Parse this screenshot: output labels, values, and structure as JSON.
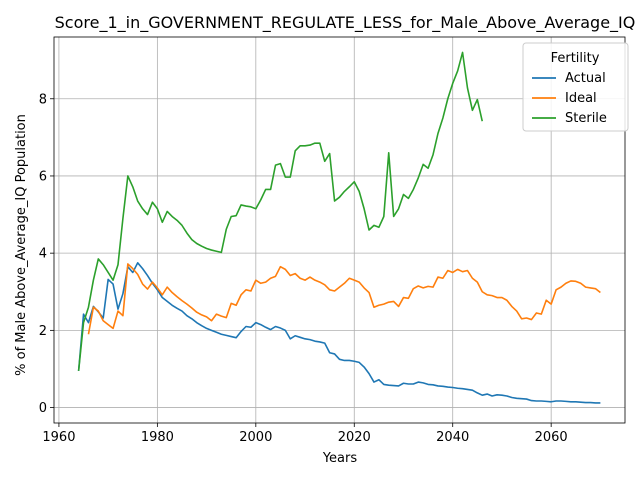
{
  "chart_data": {
    "type": "line",
    "title": "Score_1_in_GOVERNMENT_REGULATE_LESS_for_Male_Above_Average_IQ",
    "xlabel": "Years",
    "ylabel": "% of Male Above_Average_IQ Population",
    "xlim": [
      1959,
      2075
    ],
    "ylim": [
      -0.4,
      9.6
    ],
    "xticks": [
      1960,
      1980,
      2000,
      2020,
      2040,
      2060
    ],
    "yticks": [
      0,
      2,
      4,
      6,
      8
    ],
    "grid": true,
    "legend": {
      "title": "Fertility",
      "placement": "top-right"
    },
    "series": [
      {
        "name": "Actual",
        "color": "#1f77b4",
        "points": [
          [
            1964,
            0.95
          ],
          [
            1965,
            2.42
          ],
          [
            1966,
            2.2
          ],
          [
            1967,
            2.62
          ],
          [
            1968,
            2.48
          ],
          [
            1969,
            2.32
          ],
          [
            1970,
            3.32
          ],
          [
            1971,
            3.2
          ],
          [
            1972,
            2.55
          ],
          [
            1973,
            2.95
          ],
          [
            1974,
            3.65
          ],
          [
            1975,
            3.5
          ],
          [
            1976,
            3.75
          ],
          [
            1977,
            3.6
          ],
          [
            1978,
            3.42
          ],
          [
            1979,
            3.22
          ],
          [
            1980,
            3.05
          ],
          [
            1981,
            2.85
          ],
          [
            1982,
            2.75
          ],
          [
            1983,
            2.65
          ],
          [
            1984,
            2.57
          ],
          [
            1985,
            2.5
          ],
          [
            1986,
            2.38
          ],
          [
            1987,
            2.3
          ],
          [
            1988,
            2.2
          ],
          [
            1989,
            2.12
          ],
          [
            1990,
            2.05
          ],
          [
            1991,
            2.0
          ],
          [
            1992,
            1.95
          ],
          [
            1993,
            1.9
          ],
          [
            1994,
            1.87
          ],
          [
            1995,
            1.84
          ],
          [
            1996,
            1.81
          ],
          [
            1997,
            1.97
          ],
          [
            1998,
            2.1
          ],
          [
            1999,
            2.08
          ],
          [
            2000,
            2.2
          ],
          [
            2001,
            2.15
          ],
          [
            2002,
            2.08
          ],
          [
            2003,
            2.02
          ],
          [
            2004,
            2.1
          ],
          [
            2005,
            2.06
          ],
          [
            2006,
            2.0
          ],
          [
            2007,
            1.78
          ],
          [
            2008,
            1.86
          ],
          [
            2009,
            1.82
          ],
          [
            2010,
            1.78
          ],
          [
            2011,
            1.76
          ],
          [
            2012,
            1.72
          ],
          [
            2013,
            1.7
          ],
          [
            2014,
            1.67
          ],
          [
            2015,
            1.42
          ],
          [
            2016,
            1.39
          ],
          [
            2017,
            1.25
          ],
          [
            2018,
            1.22
          ],
          [
            2019,
            1.22
          ],
          [
            2020,
            1.2
          ],
          [
            2021,
            1.17
          ],
          [
            2022,
            1.05
          ],
          [
            2023,
            0.88
          ],
          [
            2024,
            0.66
          ],
          [
            2025,
            0.72
          ],
          [
            2026,
            0.6
          ],
          [
            2027,
            0.58
          ],
          [
            2028,
            0.57
          ],
          [
            2029,
            0.56
          ],
          [
            2030,
            0.63
          ],
          [
            2031,
            0.61
          ],
          [
            2032,
            0.61
          ],
          [
            2033,
            0.66
          ],
          [
            2034,
            0.64
          ],
          [
            2035,
            0.6
          ],
          [
            2036,
            0.59
          ],
          [
            2037,
            0.56
          ],
          [
            2038,
            0.55
          ],
          [
            2039,
            0.53
          ],
          [
            2040,
            0.52
          ],
          [
            2041,
            0.5
          ],
          [
            2042,
            0.49
          ],
          [
            2043,
            0.47
          ],
          [
            2044,
            0.45
          ],
          [
            2045,
            0.38
          ],
          [
            2046,
            0.32
          ],
          [
            2047,
            0.35
          ],
          [
            2048,
            0.3
          ],
          [
            2049,
            0.33
          ],
          [
            2050,
            0.32
          ],
          [
            2051,
            0.3
          ],
          [
            2052,
            0.26
          ],
          [
            2053,
            0.24
          ],
          [
            2054,
            0.23
          ],
          [
            2055,
            0.22
          ],
          [
            2056,
            0.18
          ],
          [
            2057,
            0.17
          ],
          [
            2058,
            0.17
          ],
          [
            2059,
            0.16
          ],
          [
            2060,
            0.15
          ],
          [
            2061,
            0.17
          ],
          [
            2062,
            0.17
          ],
          [
            2063,
            0.16
          ],
          [
            2064,
            0.15
          ],
          [
            2065,
            0.15
          ],
          [
            2066,
            0.14
          ],
          [
            2067,
            0.13
          ],
          [
            2068,
            0.13
          ],
          [
            2069,
            0.12
          ],
          [
            2070,
            0.12
          ]
        ]
      },
      {
        "name": "Ideal",
        "color": "#ff7f0e",
        "points": [
          [
            1966,
            1.9
          ],
          [
            1967,
            2.6
          ],
          [
            1968,
            2.5
          ],
          [
            1969,
            2.25
          ],
          [
            1970,
            2.15
          ],
          [
            1971,
            2.05
          ],
          [
            1972,
            2.5
          ],
          [
            1973,
            2.38
          ],
          [
            1974,
            3.72
          ],
          [
            1975,
            3.6
          ],
          [
            1976,
            3.45
          ],
          [
            1977,
            3.2
          ],
          [
            1978,
            3.07
          ],
          [
            1979,
            3.25
          ],
          [
            1980,
            3.1
          ],
          [
            1981,
            2.92
          ],
          [
            1982,
            3.12
          ],
          [
            1983,
            2.98
          ],
          [
            1984,
            2.87
          ],
          [
            1985,
            2.77
          ],
          [
            1986,
            2.68
          ],
          [
            1987,
            2.58
          ],
          [
            1988,
            2.47
          ],
          [
            1989,
            2.4
          ],
          [
            1990,
            2.35
          ],
          [
            1991,
            2.25
          ],
          [
            1992,
            2.42
          ],
          [
            1993,
            2.37
          ],
          [
            1994,
            2.33
          ],
          [
            1995,
            2.7
          ],
          [
            1996,
            2.65
          ],
          [
            1997,
            2.92
          ],
          [
            1998,
            3.05
          ],
          [
            1999,
            3.02
          ],
          [
            2000,
            3.3
          ],
          [
            2001,
            3.22
          ],
          [
            2002,
            3.25
          ],
          [
            2003,
            3.35
          ],
          [
            2004,
            3.4
          ],
          [
            2005,
            3.65
          ],
          [
            2006,
            3.58
          ],
          [
            2007,
            3.42
          ],
          [
            2008,
            3.47
          ],
          [
            2009,
            3.35
          ],
          [
            2010,
            3.3
          ],
          [
            2011,
            3.38
          ],
          [
            2012,
            3.3
          ],
          [
            2013,
            3.25
          ],
          [
            2014,
            3.18
          ],
          [
            2015,
            3.05
          ],
          [
            2016,
            3.02
          ],
          [
            2017,
            3.12
          ],
          [
            2018,
            3.22
          ],
          [
            2019,
            3.35
          ],
          [
            2020,
            3.3
          ],
          [
            2021,
            3.25
          ],
          [
            2022,
            3.1
          ],
          [
            2023,
            2.98
          ],
          [
            2024,
            2.6
          ],
          [
            2025,
            2.65
          ],
          [
            2026,
            2.68
          ],
          [
            2027,
            2.73
          ],
          [
            2028,
            2.75
          ],
          [
            2029,
            2.62
          ],
          [
            2030,
            2.85
          ],
          [
            2031,
            2.83
          ],
          [
            2032,
            3.08
          ],
          [
            2033,
            3.15
          ],
          [
            2034,
            3.1
          ],
          [
            2035,
            3.14
          ],
          [
            2036,
            3.12
          ],
          [
            2037,
            3.38
          ],
          [
            2038,
            3.35
          ],
          [
            2039,
            3.55
          ],
          [
            2040,
            3.5
          ],
          [
            2041,
            3.58
          ],
          [
            2042,
            3.52
          ],
          [
            2043,
            3.55
          ],
          [
            2044,
            3.35
          ],
          [
            2045,
            3.25
          ],
          [
            2046,
            3.0
          ],
          [
            2047,
            2.92
          ],
          [
            2048,
            2.9
          ],
          [
            2049,
            2.85
          ],
          [
            2050,
            2.85
          ],
          [
            2051,
            2.78
          ],
          [
            2052,
            2.62
          ],
          [
            2053,
            2.5
          ],
          [
            2054,
            2.3
          ],
          [
            2055,
            2.32
          ],
          [
            2056,
            2.28
          ],
          [
            2057,
            2.45
          ],
          [
            2058,
            2.42
          ],
          [
            2059,
            2.78
          ],
          [
            2060,
            2.68
          ],
          [
            2061,
            3.05
          ],
          [
            2062,
            3.12
          ],
          [
            2063,
            3.22
          ],
          [
            2064,
            3.28
          ],
          [
            2065,
            3.27
          ],
          [
            2066,
            3.22
          ],
          [
            2067,
            3.12
          ],
          [
            2068,
            3.1
          ],
          [
            2069,
            3.08
          ],
          [
            2070,
            2.98
          ]
        ]
      },
      {
        "name": "Sterile",
        "color": "#2ca02c",
        "points": [
          [
            1964,
            0.95
          ],
          [
            1965,
            2.2
          ],
          [
            1966,
            2.6
          ],
          [
            1967,
            3.3
          ],
          [
            1968,
            3.85
          ],
          [
            1969,
            3.7
          ],
          [
            1970,
            3.5
          ],
          [
            1971,
            3.3
          ],
          [
            1972,
            3.7
          ],
          [
            1973,
            4.9
          ],
          [
            1974,
            6.0
          ],
          [
            1975,
            5.72
          ],
          [
            1976,
            5.35
          ],
          [
            1977,
            5.15
          ],
          [
            1978,
            5.0
          ],
          [
            1979,
            5.32
          ],
          [
            1980,
            5.15
          ],
          [
            1981,
            4.8
          ],
          [
            1982,
            5.08
          ],
          [
            1983,
            4.95
          ],
          [
            1984,
            4.85
          ],
          [
            1985,
            4.72
          ],
          [
            1986,
            4.52
          ],
          [
            1987,
            4.35
          ],
          [
            1988,
            4.25
          ],
          [
            1989,
            4.18
          ],
          [
            1990,
            4.12
          ],
          [
            1991,
            4.08
          ],
          [
            1992,
            4.05
          ],
          [
            1993,
            4.02
          ],
          [
            1994,
            4.62
          ],
          [
            1995,
            4.95
          ],
          [
            1996,
            4.97
          ],
          [
            1997,
            5.25
          ],
          [
            1998,
            5.22
          ],
          [
            1999,
            5.2
          ],
          [
            2000,
            5.15
          ],
          [
            2001,
            5.38
          ],
          [
            2002,
            5.65
          ],
          [
            2003,
            5.65
          ],
          [
            2004,
            6.28
          ],
          [
            2005,
            6.32
          ],
          [
            2006,
            5.97
          ],
          [
            2007,
            5.97
          ],
          [
            2008,
            6.65
          ],
          [
            2009,
            6.78
          ],
          [
            2010,
            6.78
          ],
          [
            2011,
            6.8
          ],
          [
            2012,
            6.85
          ],
          [
            2013,
            6.85
          ],
          [
            2014,
            6.38
          ],
          [
            2015,
            6.58
          ],
          [
            2016,
            5.35
          ],
          [
            2017,
            5.45
          ],
          [
            2018,
            5.6
          ],
          [
            2019,
            5.72
          ],
          [
            2020,
            5.85
          ],
          [
            2021,
            5.6
          ],
          [
            2022,
            5.15
          ],
          [
            2023,
            4.6
          ],
          [
            2024,
            4.72
          ],
          [
            2025,
            4.67
          ],
          [
            2026,
            4.95
          ],
          [
            2027,
            6.6
          ],
          [
            2028,
            4.95
          ],
          [
            2029,
            5.15
          ],
          [
            2030,
            5.52
          ],
          [
            2031,
            5.42
          ],
          [
            2032,
            5.65
          ],
          [
            2033,
            5.95
          ],
          [
            2034,
            6.3
          ],
          [
            2035,
            6.2
          ],
          [
            2036,
            6.55
          ],
          [
            2037,
            7.1
          ],
          [
            2038,
            7.5
          ],
          [
            2039,
            8.0
          ],
          [
            2040,
            8.4
          ],
          [
            2041,
            8.72
          ],
          [
            2042,
            9.2
          ],
          [
            2043,
            8.28
          ],
          [
            2044,
            7.7
          ],
          [
            2045,
            7.98
          ],
          [
            2046,
            7.42
          ]
        ]
      }
    ]
  }
}
